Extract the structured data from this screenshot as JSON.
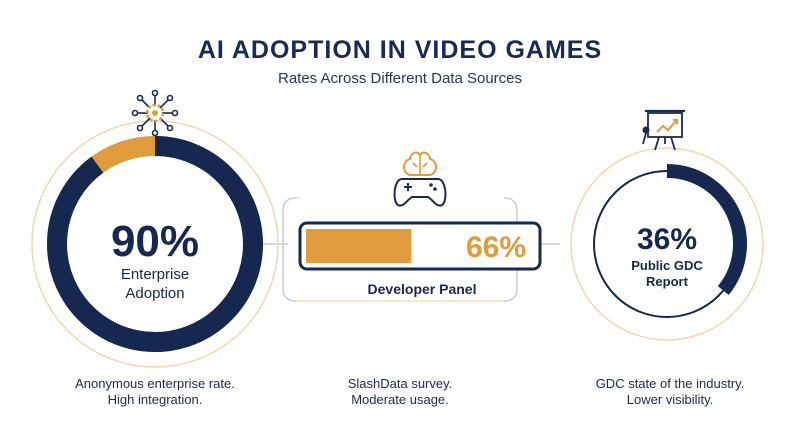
{
  "header": {
    "title": "AI ADOPTION IN VIDEO GAMES",
    "subtitle": "Rates Across Different Data Sources"
  },
  "colors": {
    "navy": "#16284f",
    "orange": "#e09b3d",
    "light_orange": "#f3d6ad",
    "text": "#1f2a44"
  },
  "icons": [
    "ai-network-gear-icon",
    "brain-gamepad-icon",
    "presentation-board-icon"
  ],
  "chart_data": [
    {
      "type": "donut",
      "label": "Enterprise Adoption",
      "label_lines": [
        "Enterprise",
        "Adoption"
      ],
      "value": 90,
      "value_text": "90%",
      "caption": [
        "Anonymous enterprise rate.",
        "High integration."
      ]
    },
    {
      "type": "bar",
      "label": "Developer Panel",
      "value": 66,
      "value_text": "66%",
      "caption": [
        "SlashData survey.",
        "Moderate usage."
      ]
    },
    {
      "type": "donut",
      "label": "Public GDC Report",
      "label_lines": [
        "Public GDC",
        "Report"
      ],
      "value": 36,
      "value_text": "36%",
      "caption": [
        "GDC state of the industry.",
        "Lower visibility."
      ]
    }
  ]
}
